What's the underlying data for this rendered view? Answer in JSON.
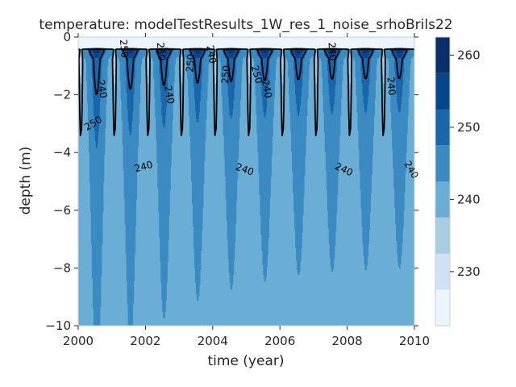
{
  "chart_data": {
    "type": "contour",
    "title": "temperature: modelTestResults_1W_res_1_noise_srhoBrils22",
    "xlabel": "time (year)",
    "ylabel": "depth (m)",
    "xlim": [
      2000,
      2010
    ],
    "ylim": [
      -10,
      0
    ],
    "x_ticks": [
      2000,
      2002,
      2004,
      2006,
      2008,
      2010
    ],
    "y_ticks": [
      0,
      -2,
      -4,
      -6,
      -8,
      -10
    ],
    "grid": false,
    "colormap": "Blues",
    "fill_levels": [
      222.5,
      227.5,
      232.5,
      237.5,
      242.5,
      247.5,
      252.5,
      257.5,
      262.5
    ],
    "fill_colors": [
      "#eef4fb",
      "#cfe1f2",
      "#a6cde3",
      "#6aaed6",
      "#3b8bc2",
      "#1a66ad",
      "#08468c",
      "#08306b"
    ],
    "colorbar_ticks": [
      230,
      240,
      250,
      260
    ],
    "background_temperature": 241,
    "surface_depth": -0.4,
    "line_levels": [
      240,
      250
    ],
    "line_color": "#000000",
    "contour_labels": [
      {
        "text": "250",
        "x": 2000.45,
        "y": -3.0,
        "angle": -32
      },
      {
        "text": "240",
        "x": 2000.7,
        "y": -1.8,
        "angle": 80
      },
      {
        "text": "250",
        "x": 2001.35,
        "y": -0.4,
        "angle": 85
      },
      {
        "text": "240",
        "x": 2001.95,
        "y": -4.5,
        "angle": -15
      },
      {
        "text": "250",
        "x": 2002.45,
        "y": -0.5,
        "angle": 85
      },
      {
        "text": "240",
        "x": 2002.7,
        "y": -2.0,
        "angle": 80
      },
      {
        "text": "250",
        "x": 2003.35,
        "y": -0.9,
        "angle": -85
      },
      {
        "text": "240",
        "x": 2003.95,
        "y": -0.6,
        "angle": 80
      },
      {
        "text": "250",
        "x": 2004.4,
        "y": -1.3,
        "angle": -85
      },
      {
        "text": "240",
        "x": 2004.95,
        "y": -4.6,
        "angle": 20
      },
      {
        "text": "250",
        "x": 2005.3,
        "y": -1.3,
        "angle": 75
      },
      {
        "text": "240",
        "x": 2005.6,
        "y": -1.8,
        "angle": 80
      },
      {
        "text": "240",
        "x": 2007.55,
        "y": -0.5,
        "angle": 85
      },
      {
        "text": "240",
        "x": 2007.9,
        "y": -4.6,
        "angle": 25
      },
      {
        "text": "240",
        "x": 2009.3,
        "y": -1.7,
        "angle": 85
      },
      {
        "text": "240",
        "x": 2009.9,
        "y": -4.6,
        "angle": 60
      }
    ]
  }
}
